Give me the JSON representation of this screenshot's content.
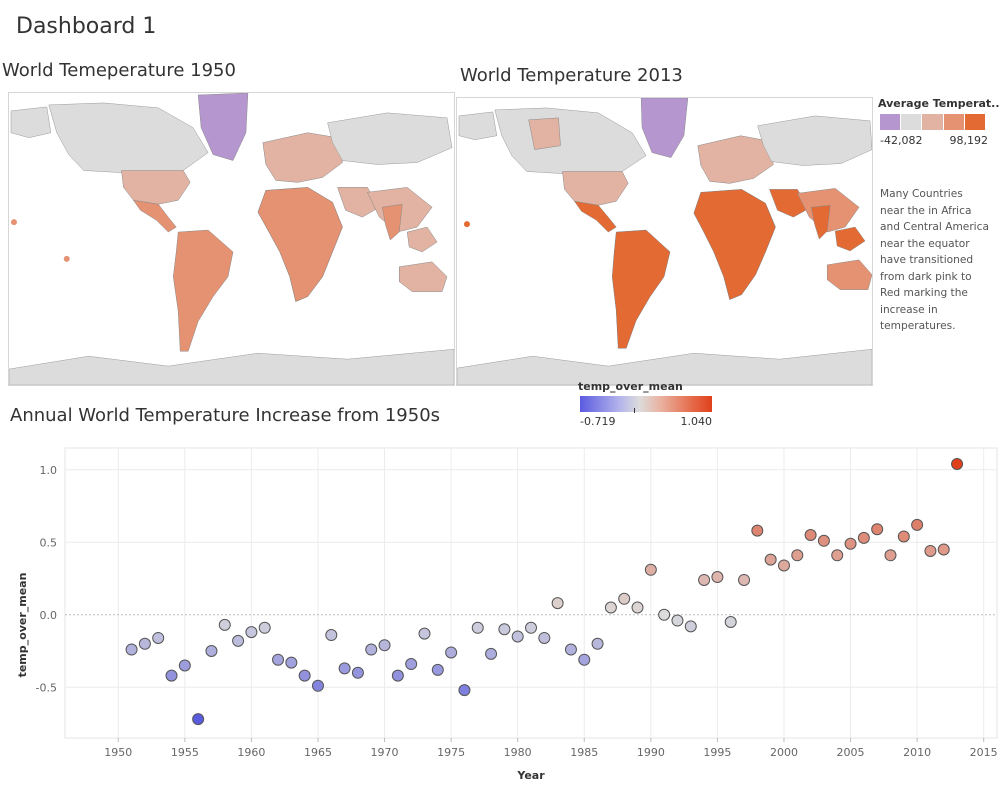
{
  "dashboard": {
    "title": "Dashboard 1"
  },
  "maps": {
    "left_title": "World Temeperature 1950",
    "right_title": "World Temperature 2013"
  },
  "legend": {
    "title": "Average Temperat..",
    "min_label": "-42,082",
    "max_label": "98,192",
    "colors": [
      "#b596cf",
      "#dcdcdc",
      "#e2b3a2",
      "#e59272",
      "#e36a33"
    ]
  },
  "note": "Many Countries near the in Africa and Central America near the equator have transitioned from dark pink to Red marking the increase in temperatures.",
  "color_scale": {
    "title": "temp_over_mean",
    "min_label": "-0.719",
    "max_label": "1.040"
  },
  "colors": {
    "land_gray": "#dcdcdc",
    "accent_low": "#5b5be0",
    "accent_high": "#e0401c"
  },
  "chart_data": {
    "type": "scatter",
    "title": "Annual World Temperature Increase from 1950s",
    "xlabel": "Year",
    "ylabel": "temp_over_mean",
    "xlim": [
      1946,
      2016
    ],
    "ylim": [
      -0.85,
      1.15
    ],
    "xticks": [
      1950,
      1955,
      1960,
      1965,
      1970,
      1975,
      1980,
      1985,
      1990,
      1995,
      2000,
      2005,
      2010,
      2015
    ],
    "yticks": [
      -0.5,
      0.0,
      0.5,
      1.0
    ],
    "ytick_labels": [
      "-0.5",
      "0.0",
      "0.5",
      "1.0"
    ],
    "color_range": [
      -0.719,
      1.04
    ],
    "grid": true,
    "points": [
      {
        "x": 1951,
        "y": -0.24
      },
      {
        "x": 1952,
        "y": -0.2
      },
      {
        "x": 1953,
        "y": -0.16
      },
      {
        "x": 1954,
        "y": -0.42
      },
      {
        "x": 1955,
        "y": -0.35
      },
      {
        "x": 1956,
        "y": -0.72
      },
      {
        "x": 1957,
        "y": -0.25
      },
      {
        "x": 1958,
        "y": -0.07
      },
      {
        "x": 1959,
        "y": -0.18
      },
      {
        "x": 1960,
        "y": -0.12
      },
      {
        "x": 1961,
        "y": -0.09
      },
      {
        "x": 1962,
        "y": -0.31
      },
      {
        "x": 1963,
        "y": -0.33
      },
      {
        "x": 1964,
        "y": -0.42
      },
      {
        "x": 1965,
        "y": -0.49
      },
      {
        "x": 1966,
        "y": -0.14
      },
      {
        "x": 1967,
        "y": -0.37
      },
      {
        "x": 1968,
        "y": -0.4
      },
      {
        "x": 1969,
        "y": -0.24
      },
      {
        "x": 1970,
        "y": -0.21
      },
      {
        "x": 1971,
        "y": -0.42
      },
      {
        "x": 1972,
        "y": -0.34
      },
      {
        "x": 1973,
        "y": -0.13
      },
      {
        "x": 1974,
        "y": -0.38
      },
      {
        "x": 1975,
        "y": -0.26
      },
      {
        "x": 1976,
        "y": -0.52
      },
      {
        "x": 1977,
        "y": -0.09
      },
      {
        "x": 1978,
        "y": -0.27
      },
      {
        "x": 1979,
        "y": -0.1
      },
      {
        "x": 1980,
        "y": -0.15
      },
      {
        "x": 1981,
        "y": -0.09
      },
      {
        "x": 1982,
        "y": -0.16
      },
      {
        "x": 1983,
        "y": 0.08
      },
      {
        "x": 1984,
        "y": -0.24
      },
      {
        "x": 1985,
        "y": -0.31
      },
      {
        "x": 1986,
        "y": -0.2
      },
      {
        "x": 1987,
        "y": 0.05
      },
      {
        "x": 1988,
        "y": 0.11
      },
      {
        "x": 1989,
        "y": 0.05
      },
      {
        "x": 1990,
        "y": 0.31
      },
      {
        "x": 1991,
        "y": 0.0
      },
      {
        "x": 1992,
        "y": -0.04
      },
      {
        "x": 1993,
        "y": -0.08
      },
      {
        "x": 1994,
        "y": 0.24
      },
      {
        "x": 1995,
        "y": 0.26
      },
      {
        "x": 1996,
        "y": -0.05
      },
      {
        "x": 1997,
        "y": 0.24
      },
      {
        "x": 1998,
        "y": 0.58
      },
      {
        "x": 1999,
        "y": 0.38
      },
      {
        "x": 2000,
        "y": 0.34
      },
      {
        "x": 2001,
        "y": 0.41
      },
      {
        "x": 2002,
        "y": 0.55
      },
      {
        "x": 2003,
        "y": 0.51
      },
      {
        "x": 2004,
        "y": 0.41
      },
      {
        "x": 2005,
        "y": 0.49
      },
      {
        "x": 2006,
        "y": 0.53
      },
      {
        "x": 2007,
        "y": 0.59
      },
      {
        "x": 2008,
        "y": 0.41
      },
      {
        "x": 2009,
        "y": 0.54
      },
      {
        "x": 2010,
        "y": 0.62
      },
      {
        "x": 2011,
        "y": 0.44
      },
      {
        "x": 2012,
        "y": 0.45
      },
      {
        "x": 2013,
        "y": 1.04
      }
    ]
  }
}
